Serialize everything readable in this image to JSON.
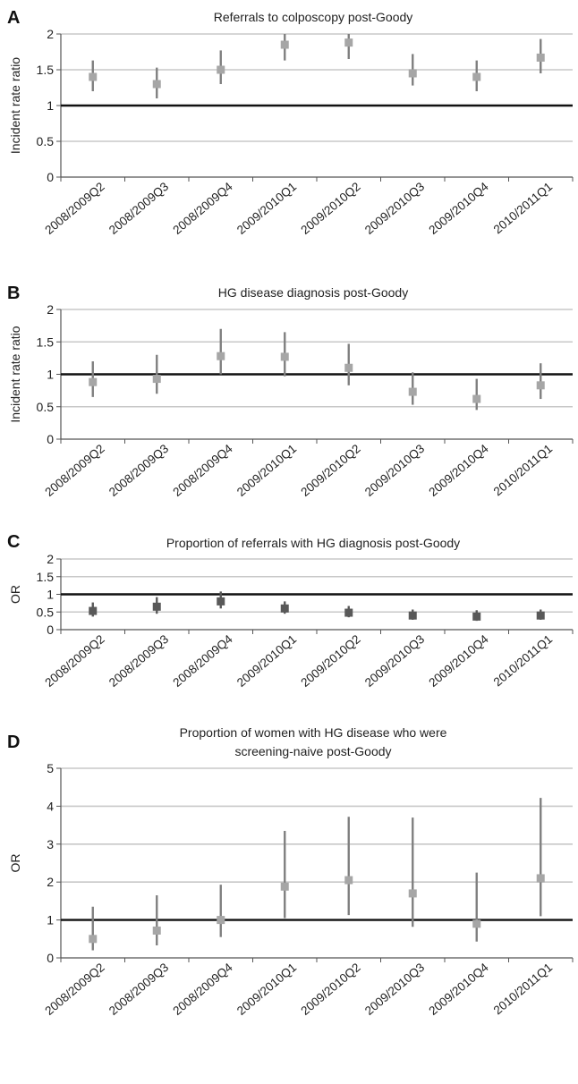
{
  "chart_data": [
    {
      "panel": "A",
      "type": "scatter",
      "title": "Referrals to colposcopy post-Goody",
      "ylabel": "Incident rate ratio",
      "xlabel": "",
      "ylim": [
        0,
        2
      ],
      "yticks": [
        "0",
        "0.5",
        "1",
        "1.5",
        "2"
      ],
      "reference_line": 1,
      "grid": true,
      "categories": [
        "2008/2009Q2",
        "2008/2009Q3",
        "2008/2009Q4",
        "2009/2010Q1",
        "2009/2010Q2",
        "2009/2010Q3",
        "2009/2010Q4",
        "2010/2011Q1"
      ],
      "values": [
        1.4,
        1.3,
        1.5,
        1.85,
        1.88,
        1.45,
        1.4,
        1.67
      ],
      "ci_lower": [
        1.2,
        1.1,
        1.3,
        1.63,
        1.65,
        1.28,
        1.2,
        1.45
      ],
      "ci_upper": [
        1.63,
        1.53,
        1.77,
        2.0,
        2.0,
        1.72,
        1.63,
        1.93
      ],
      "marker_color": "#a6a6a6",
      "errorbar_color": "#7f7f7f"
    },
    {
      "panel": "B",
      "type": "scatter",
      "title": "HG disease diagnosis post-Goody",
      "ylabel": "Incident rate ratio",
      "xlabel": "",
      "ylim": [
        0,
        2
      ],
      "yticks": [
        "0",
        "0.5",
        "1",
        "1.5",
        "2"
      ],
      "reference_line": 1,
      "grid": true,
      "categories": [
        "2008/2009Q2",
        "2008/2009Q3",
        "2008/2009Q4",
        "2009/2010Q1",
        "2009/2010Q2",
        "2009/2010Q3",
        "2009/2010Q4",
        "2010/2011Q1"
      ],
      "values": [
        0.88,
        0.93,
        1.28,
        1.27,
        1.1,
        0.73,
        0.62,
        0.83
      ],
      "ci_lower": [
        0.65,
        0.7,
        1.0,
        0.97,
        0.83,
        0.53,
        0.45,
        0.62
      ],
      "ci_upper": [
        1.2,
        1.3,
        1.7,
        1.65,
        1.47,
        1.03,
        0.93,
        1.17
      ],
      "marker_color": "#a6a6a6",
      "errorbar_color": "#7f7f7f"
    },
    {
      "panel": "C",
      "type": "scatter",
      "title": "Proportion of referrals with HG diagnosis post-Goody",
      "ylabel": "OR",
      "xlabel": "",
      "ylim": [
        0,
        2
      ],
      "yticks": [
        "0",
        "0.5",
        "1",
        "1.5",
        "2"
      ],
      "reference_line": 1,
      "grid": true,
      "categories": [
        "2008/2009Q2",
        "2008/2009Q3",
        "2008/2009Q4",
        "2009/2010Q1",
        "2009/2010Q2",
        "2009/2010Q3",
        "2009/2010Q4",
        "2010/2011Q1"
      ],
      "values": [
        0.53,
        0.65,
        0.8,
        0.6,
        0.48,
        0.4,
        0.37,
        0.4
      ],
      "ci_lower": [
        0.37,
        0.45,
        0.6,
        0.45,
        0.35,
        0.28,
        0.25,
        0.28
      ],
      "ci_upper": [
        0.77,
        0.92,
        1.08,
        0.8,
        0.67,
        0.57,
        0.55,
        0.57
      ],
      "marker_color": "#595959",
      "errorbar_color": "#595959"
    },
    {
      "panel": "D",
      "type": "scatter",
      "title": "Proportion of women with HG disease who were screening-naive post-Goody",
      "title_lines": [
        "Proportion of women with HG disease who were",
        "screening-naive post-Goody"
      ],
      "ylabel": "OR",
      "xlabel": "",
      "ylim": [
        0,
        5
      ],
      "yticks": [
        "0",
        "1",
        "2",
        "3",
        "4",
        "5"
      ],
      "reference_line": 1,
      "grid": true,
      "categories": [
        "2008/2009Q2",
        "2008/2009Q3",
        "2008/2009Q4",
        "2009/2010Q1",
        "2009/2010Q2",
        "2009/2010Q3",
        "2009/2010Q4",
        "2010/2011Q1"
      ],
      "values": [
        0.5,
        0.72,
        1.0,
        1.88,
        2.05,
        1.7,
        0.9,
        2.1
      ],
      "ci_lower": [
        0.2,
        0.33,
        0.55,
        1.05,
        1.13,
        0.82,
        0.43,
        1.1
      ],
      "ci_upper": [
        1.35,
        1.65,
        1.93,
        3.35,
        3.72,
        3.7,
        2.25,
        4.22
      ],
      "marker_color": "#a6a6a6",
      "errorbar_color": "#7f7f7f"
    }
  ]
}
